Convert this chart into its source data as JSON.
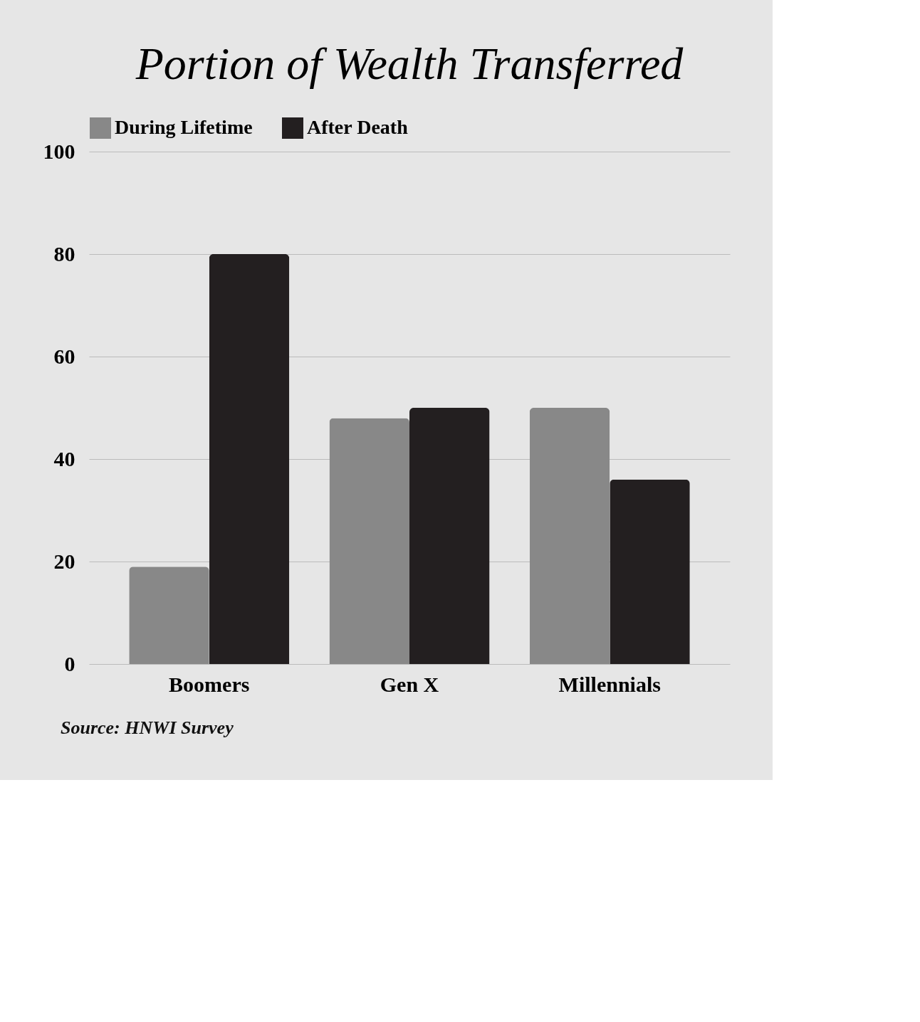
{
  "chart_data": {
    "type": "bar",
    "title": "Portion of Wealth Transferred",
    "categories": [
      "Boomers",
      "Gen X",
      "Millennials"
    ],
    "series": [
      {
        "name": "During Lifetime",
        "color": "#888888",
        "values": [
          19,
          48,
          50
        ]
      },
      {
        "name": "After Death",
        "color": "#231f20",
        "values": [
          80,
          50,
          36
        ]
      }
    ],
    "ylim": [
      0,
      100
    ],
    "yticks": [
      0,
      20,
      40,
      60,
      80,
      100
    ],
    "grid": "y",
    "legend": "top",
    "annotations": [
      "Source: HNWI Survey"
    ]
  }
}
